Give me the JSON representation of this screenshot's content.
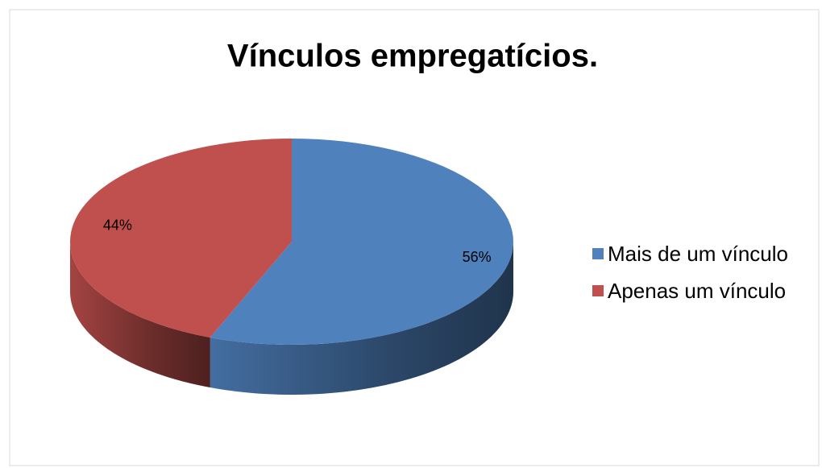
{
  "chart_data": {
    "type": "pie",
    "title": "Vínculos empregatícios.",
    "categories": [
      "Mais de um vínculo",
      "Apenas um vínculo"
    ],
    "values": [
      56,
      44
    ],
    "value_labels": [
      "56%",
      "44%"
    ],
    "colors": [
      "#4f81bd",
      "#c0504d"
    ],
    "legend": "right"
  }
}
